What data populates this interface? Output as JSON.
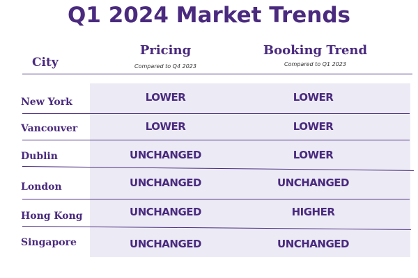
{
  "title": "Q1 2024 Market Trends",
  "header": {
    "city": "City",
    "pricing": "Pricing",
    "pricing_sub": "Compared to Q4 2023",
    "booking": "Booking Trend",
    "booking_sub": "Compared to Q1 2023"
  },
  "rows": [
    {
      "city": "New York",
      "pricing": "LOWER",
      "booking": "LOWER"
    },
    {
      "city": "Vancouver",
      "pricing": "LOWER",
      "booking": "LOWER"
    },
    {
      "city": "Dublin",
      "pricing": "UNCHANGED",
      "booking": "LOWER"
    },
    {
      "city": "London",
      "pricing": "UNCHANGED",
      "booking": "UNCHANGED"
    },
    {
      "city": "Hong Kong",
      "pricing": "UNCHANGED",
      "booking": "HIGHER"
    },
    {
      "city": "Singapore",
      "pricing": "UNCHANGED",
      "booking": "UNCHANGED"
    }
  ],
  "colors": {
    "accent": "#4a2a7e",
    "row_shade": "#ecebf5"
  }
}
